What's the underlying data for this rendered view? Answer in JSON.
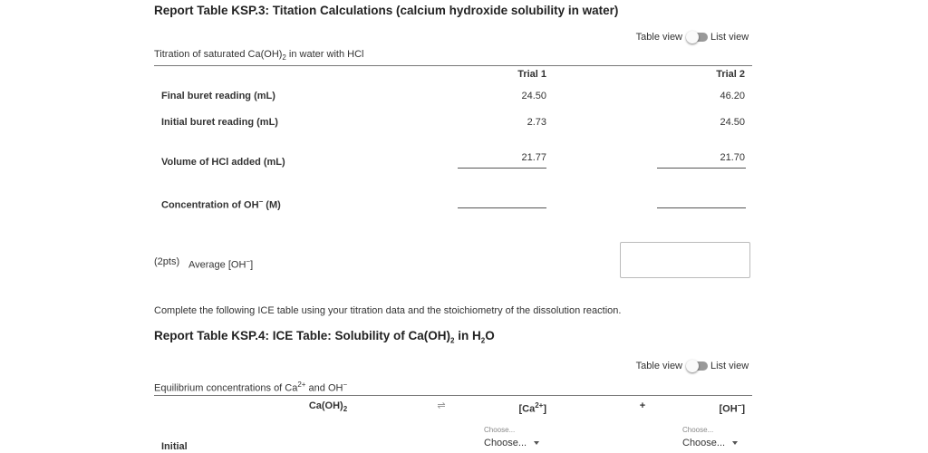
{
  "table1": {
    "title": "Report Table KSP.3: Titation Calculations (calcium hydroxide solubility in water)",
    "toggle": {
      "left": "Table view",
      "right": "List view"
    },
    "caption": [
      "Titration of saturated Ca(OH)",
      "2",
      " in water with HCl"
    ],
    "columns": [
      "Trial 1",
      "Trial 2"
    ],
    "rows": [
      {
        "label": "Final buret reading (mL)",
        "values": [
          "24.50",
          "46.20"
        ]
      },
      {
        "label": "Initial buret reading (mL)",
        "values": [
          "2.73",
          "24.50"
        ]
      },
      {
        "label": "Volume of HCl added (mL)",
        "values": [
          "21.77",
          "21.70"
        ]
      },
      {
        "label": [
          "Concentration of OH",
          "−",
          " (M)"
        ]
      }
    ],
    "average": {
      "points": "(2pts)",
      "label": [
        "Average [OH",
        "−",
        "]"
      ]
    }
  },
  "instruction": "Complete the following ICE table using your titration data and the stoichiometry of the dissolution reaction.",
  "table2": {
    "title": [
      "Report Table KSP.4: ICE Table: Solubility of Ca(OH)",
      "2",
      " in H",
      "2",
      "O"
    ],
    "toggle": {
      "left": "Table view",
      "right": "List view"
    },
    "caption": [
      "Equilibrium concentrations of Ca",
      "2+",
      " and OH",
      "−"
    ],
    "headers": {
      "solid": [
        "Ca(OH)",
        "2"
      ],
      "arrow": "⇌",
      "cation": [
        "[Ca",
        "2+",
        "]"
      ],
      "plus": "+",
      "anion": [
        "[OH",
        "−",
        "]"
      ]
    },
    "rows": [
      {
        "label": "Initial",
        "selects": [
          {
            "hint": "Choose...",
            "value": "Choose..."
          },
          {
            "hint": "Choose...",
            "value": "Choose..."
          }
        ]
      }
    ]
  }
}
